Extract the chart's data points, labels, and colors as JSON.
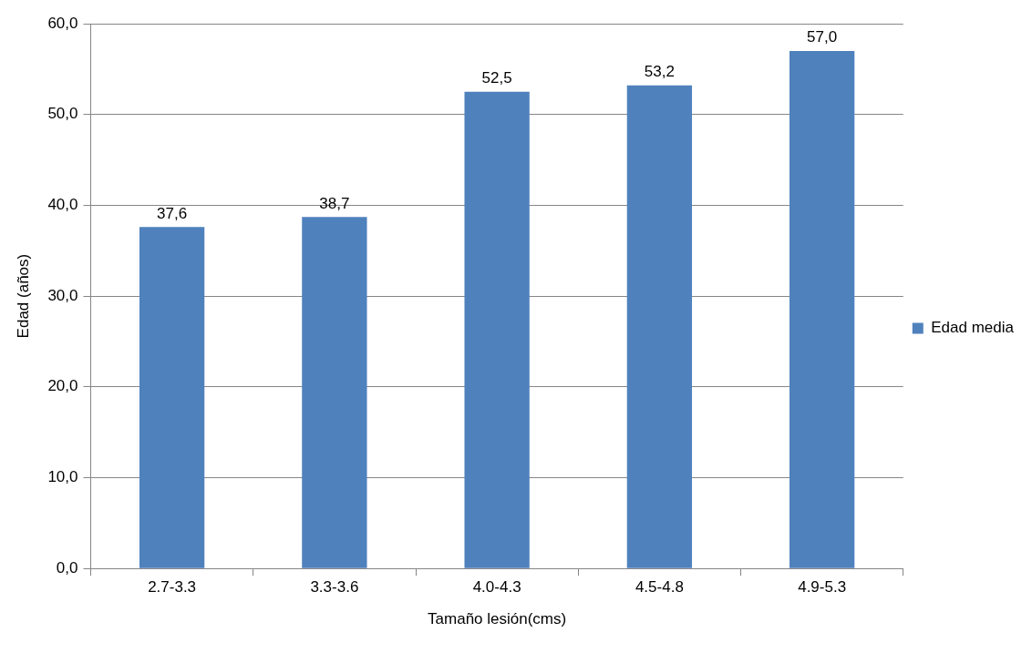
{
  "chart_data": {
    "type": "bar",
    "xlabel": "Tamaño lesión(cms)",
    "ylabel": "Edad (años)",
    "categories": [
      "2.7-3.3",
      "3.3-3.6",
      "4.0-4.3",
      "4.5-4.8",
      "4.9-5.3"
    ],
    "series": [
      {
        "name": "Edad media",
        "color": "#4f81bd",
        "values": [
          37.6,
          38.7,
          52.5,
          53.2,
          57.0
        ],
        "value_labels": [
          "37,6",
          "38,7",
          "52,5",
          "53,2",
          "57,0"
        ]
      }
    ],
    "ylim": [
      0,
      60
    ],
    "yticks": [
      {
        "value": 0,
        "label": "0,0"
      },
      {
        "value": 10,
        "label": "10,0"
      },
      {
        "value": 20,
        "label": "20,0"
      },
      {
        "value": 30,
        "label": "30,0"
      },
      {
        "value": 40,
        "label": "40,0"
      },
      {
        "value": 50,
        "label": "50,0"
      },
      {
        "value": 60,
        "label": "60,0"
      }
    ],
    "grid": "y",
    "legend": "right"
  }
}
